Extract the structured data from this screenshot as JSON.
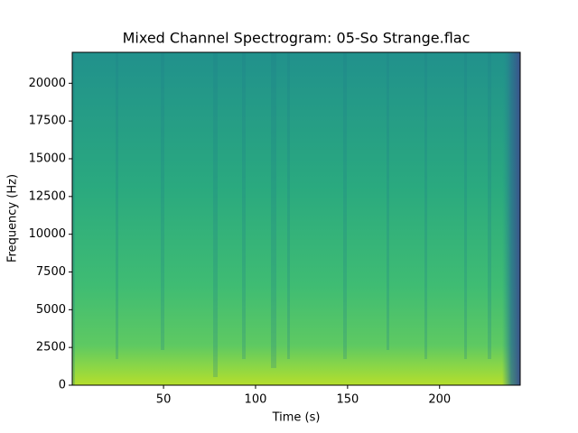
{
  "chart_data": {
    "type": "spectrogram",
    "title": "Mixed Channel Spectrogram: 05-So Strange.flac",
    "x_label": "Time (s)",
    "y_label": "Frequency (Hz)",
    "xlim": [
      0.4,
      243.8
    ],
    "ylim": [
      0,
      22050
    ],
    "xticks": [
      50,
      100,
      150,
      200
    ],
    "yticks": [
      0,
      2500,
      5000,
      7500,
      10000,
      12500,
      15000,
      17500,
      20000
    ]
  }
}
